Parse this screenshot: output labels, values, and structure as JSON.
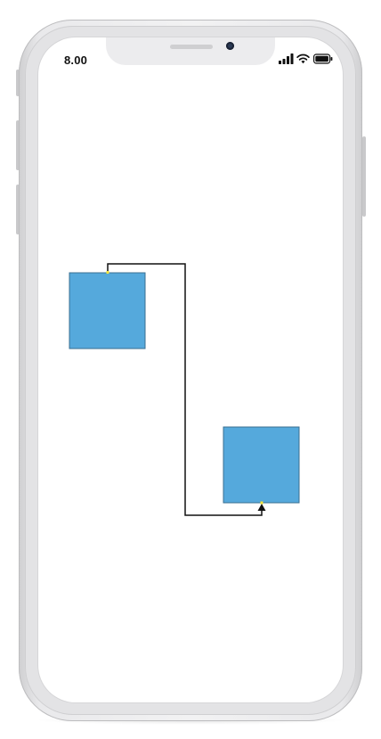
{
  "status_bar": {
    "time": "8.00",
    "icons": [
      "signal-icon",
      "wifi-icon",
      "battery-icon"
    ]
  },
  "diagram": {
    "type": "flowchart-connector",
    "nodes": [
      {
        "id": "node-1",
        "shape": "rectangle",
        "fill": "#55a9dc",
        "stroke": "#3a6f91"
      },
      {
        "id": "node-2",
        "shape": "rectangle",
        "fill": "#55a9dc",
        "stroke": "#3a6f91"
      }
    ],
    "connectors": [
      {
        "id": "connector-1",
        "from": "node-1",
        "to": "node-2",
        "style": "orthogonal",
        "color": "#111111",
        "arrowhead": "target",
        "port_marker_color": "#f5e63c"
      }
    ]
  },
  "colors": {
    "frame": "#e9e9eb",
    "screen": "#ffffff",
    "node_fill": "#55a9dc"
  }
}
